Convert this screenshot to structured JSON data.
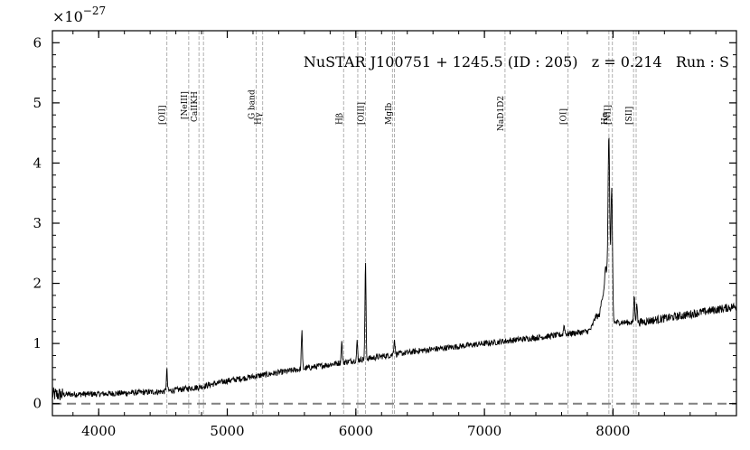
{
  "chart_data": {
    "type": "line",
    "title": "NuSTAR J100751 + 1245.5 (ID : 205)   z = 0.214   Run : S",
    "xlabel": "",
    "ylabel": "",
    "y_multiplier_label": "×10",
    "y_multiplier_exponent": "−27",
    "xlim": [
      3640,
      8960
    ],
    "ylim": [
      -0.2,
      6.2
    ],
    "x_ticks": [
      4000,
      5000,
      6000,
      7000,
      8000
    ],
    "x_tick_labels": [
      "4000",
      "5000",
      "6000",
      "7000",
      "8000"
    ],
    "y_ticks": [
      0,
      1,
      2,
      3,
      4,
      5,
      6
    ],
    "y_tick_labels": [
      "0",
      "1",
      "2",
      "3",
      "4",
      "5",
      "6"
    ],
    "grid": false,
    "legend": "none",
    "zero_line": {
      "y": 0,
      "style": "dashed",
      "color": "#808080"
    },
    "series": [
      {
        "color": "#000000",
        "continuum": [
          [
            3640,
            0.15
          ],
          [
            4000,
            0.16
          ],
          [
            4500,
            0.2
          ],
          [
            4800,
            0.28
          ],
          [
            5000,
            0.38
          ],
          [
            5500,
            0.55
          ],
          [
            6000,
            0.72
          ],
          [
            6500,
            0.88
          ],
          [
            7000,
            1.0
          ],
          [
            7500,
            1.12
          ],
          [
            7800,
            1.2
          ],
          [
            7900,
            1.3
          ],
          [
            8000,
            1.35
          ],
          [
            8200,
            1.35
          ],
          [
            8500,
            1.45
          ],
          [
            8960,
            1.62
          ]
        ],
        "features": [
          {
            "x": 4530,
            "height": 0.35,
            "width": 4
          },
          {
            "x": 5580,
            "height": 0.65,
            "width": 4
          },
          {
            "x": 5890,
            "height": 0.35,
            "width": 4
          },
          {
            "x": 6010,
            "height": 0.3,
            "width": 4
          },
          {
            "x": 6075,
            "height": 1.6,
            "width": 4
          },
          {
            "x": 6300,
            "height": 0.25,
            "width": 5
          },
          {
            "x": 7620,
            "height": 0.15,
            "width": 5
          },
          {
            "x": 7870,
            "height": 0.18,
            "width": 20
          },
          {
            "x": 7920,
            "height": 0.45,
            "width": 15
          },
          {
            "x": 7968,
            "height": 3.05,
            "width": 7
          },
          {
            "x": 7990,
            "height": 2.2,
            "width": 6
          },
          {
            "x": 7945,
            "height": 0.8,
            "width": 10
          },
          {
            "x": 8165,
            "height": 0.45,
            "width": 4
          },
          {
            "x": 8185,
            "height": 0.35,
            "width": 4
          }
        ],
        "noise": 0.05
      }
    ],
    "annotations": [
      {
        "x": 4530,
        "label": "[OII]"
      },
      {
        "x": 4700,
        "label": "[NeIII]"
      },
      {
        "x": 4780,
        "label": "CaIIK"
      },
      {
        "x": 4815,
        "label": "CaIIH"
      },
      {
        "x": 5225,
        "label": "G band"
      },
      {
        "x": 5275,
        "label": "Hγ"
      },
      {
        "x": 5905,
        "label": "Hβ"
      },
      {
        "x": 6015,
        "label": "[OIII]"
      },
      {
        "x": 6075,
        "label": "[OIII]"
      },
      {
        "x": 6285,
        "label": "MgIb"
      },
      {
        "x": 6300,
        "label": "MgIb"
      },
      {
        "x": 7160,
        "label": "NaD1D2"
      },
      {
        "x": 7650,
        "label": "[OI]"
      },
      {
        "x": 7968,
        "label": "Hα"
      },
      {
        "x": 7995,
        "label": "[NII]"
      },
      {
        "x": 8160,
        "label": "[SII]"
      },
      {
        "x": 8180,
        "label": "[SII]"
      }
    ],
    "annotation_labels_shown": [
      "[OII]",
      "[NeIII]",
      "CaIIKH",
      "G band",
      "Hγ",
      "Hβ",
      "[OIII]",
      "MgIb",
      "NaD1D2",
      "[OI]",
      "Hα",
      "[NII]",
      "[SII]"
    ]
  }
}
